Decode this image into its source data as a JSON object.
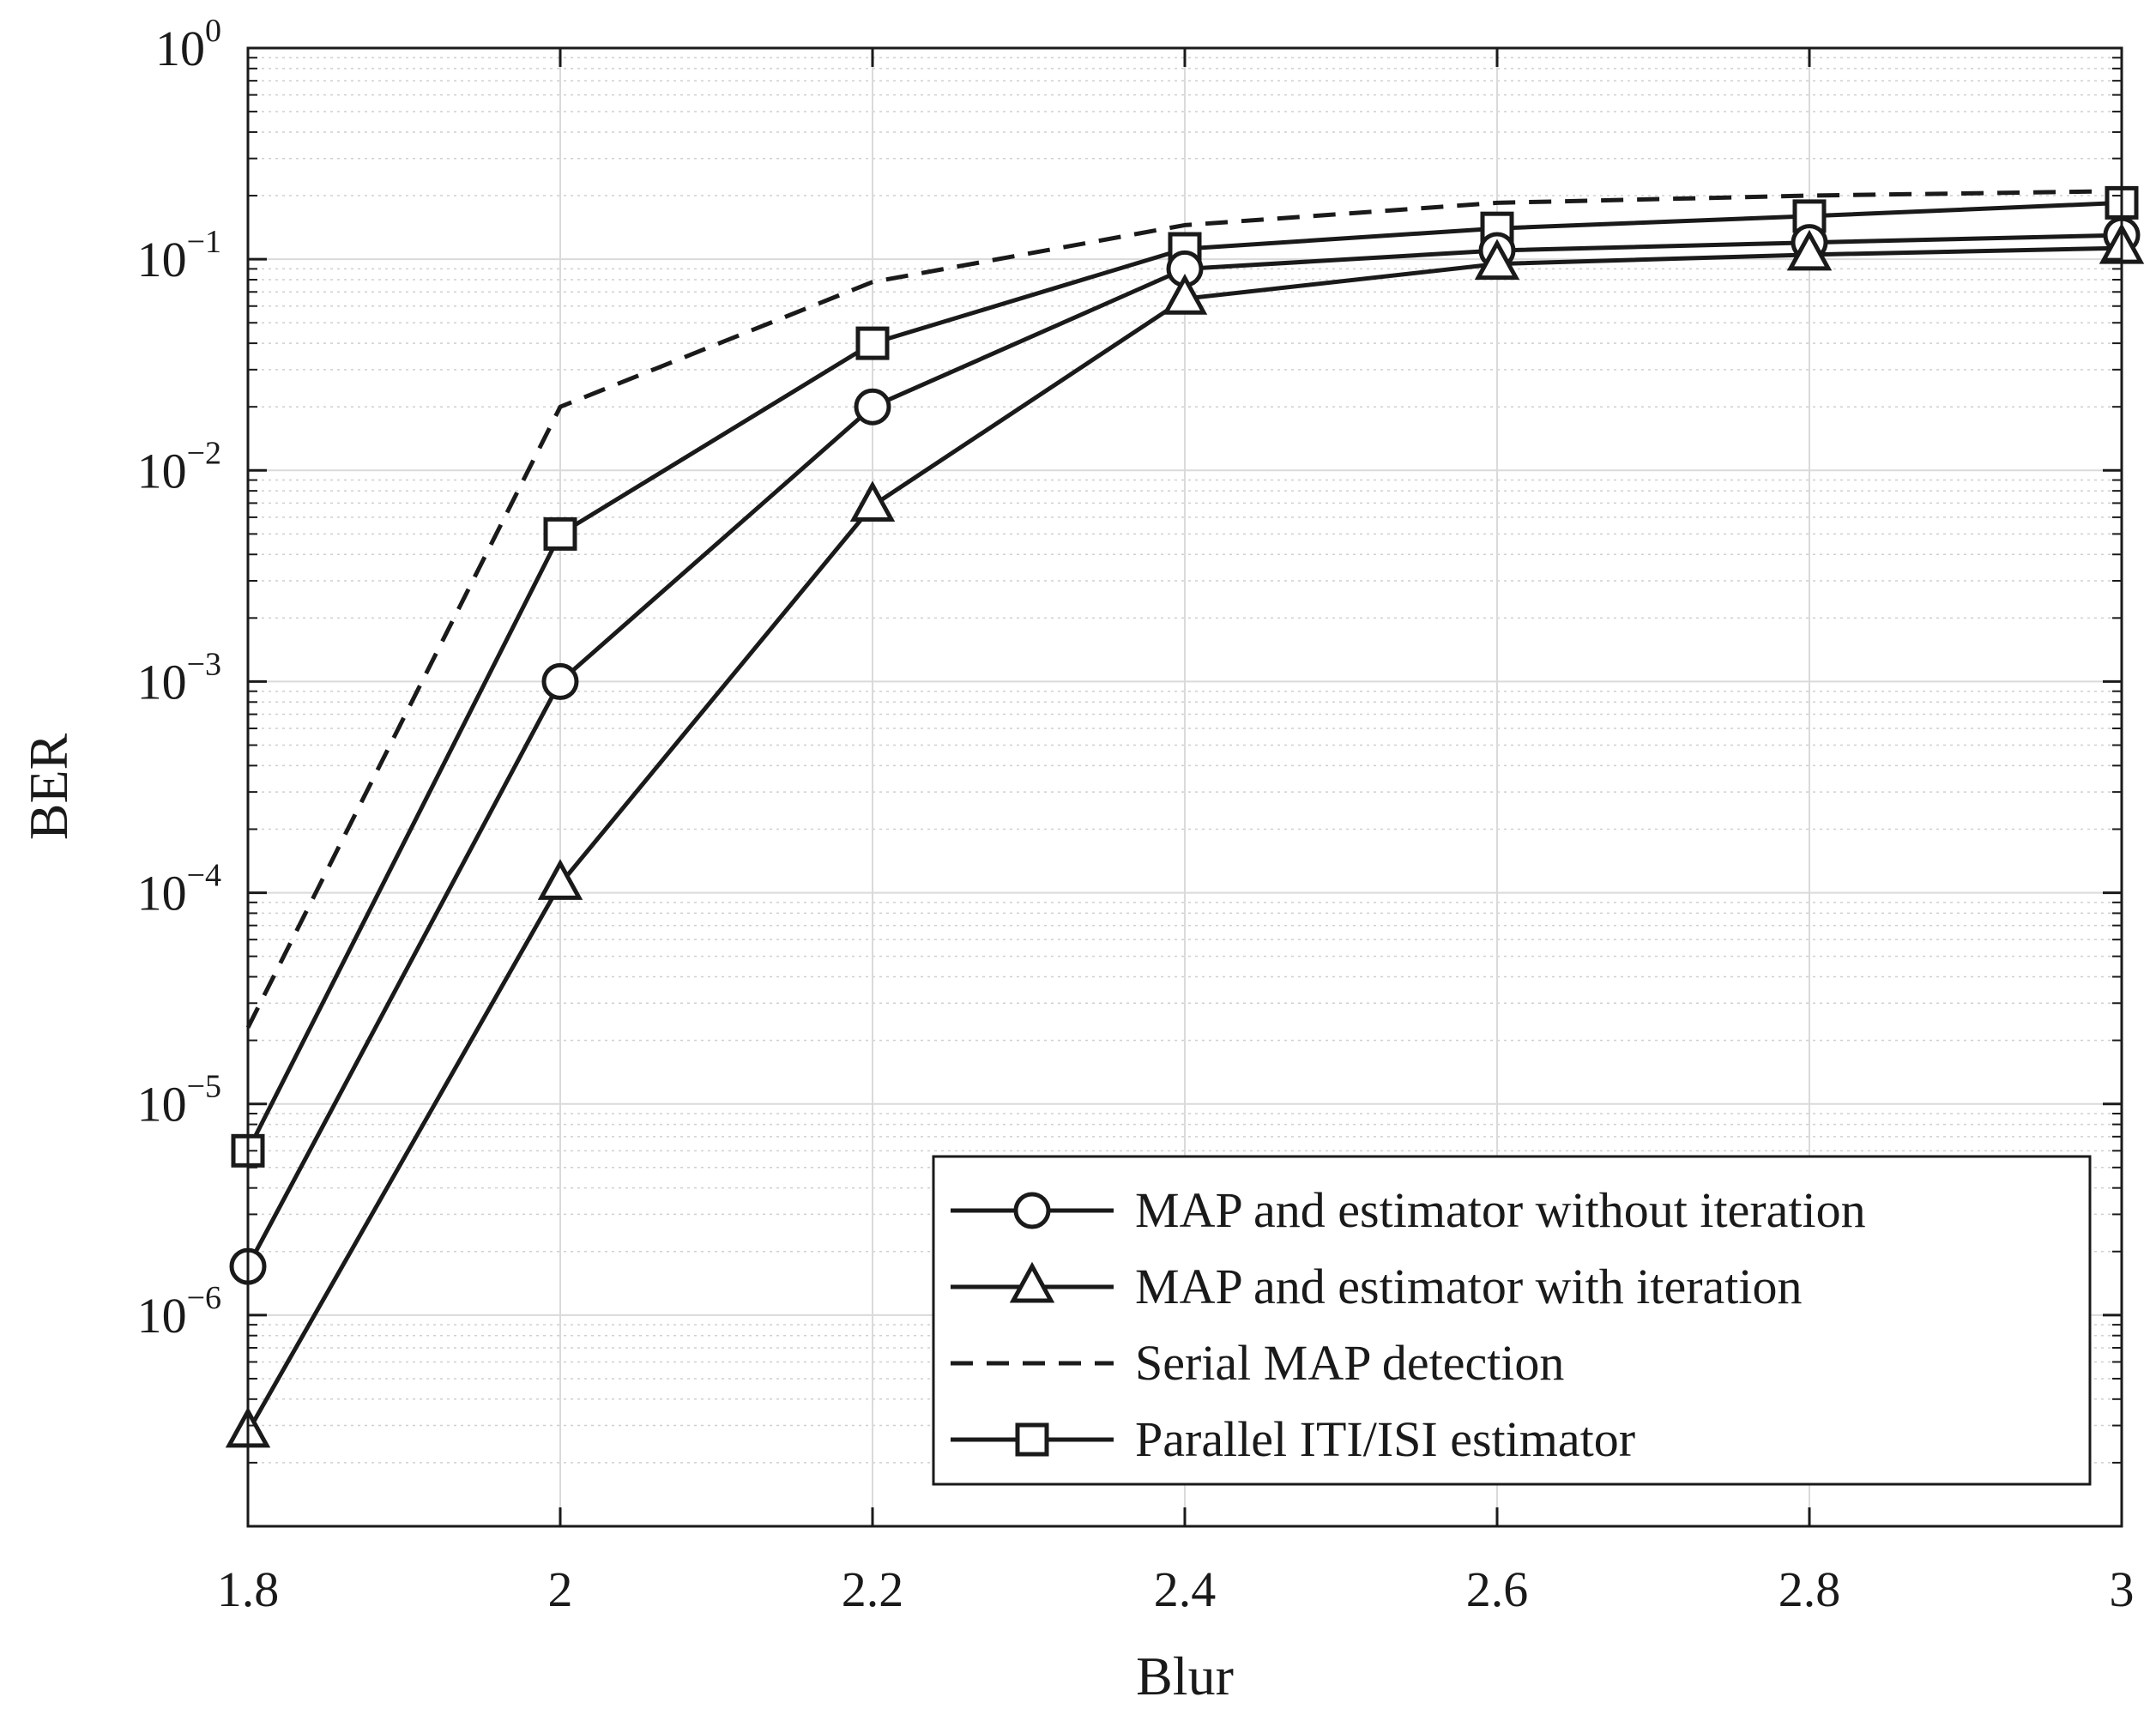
{
  "chart_data": {
    "type": "line",
    "title": "",
    "xlabel": "Blur",
    "ylabel": "BER",
    "xscale": "linear",
    "yscale": "log",
    "xlim": [
      1.8,
      3.0
    ],
    "ylim": [
      1e-07,
      1
    ],
    "x_ticks": [
      "1.8",
      "2",
      "2.2",
      "2.4",
      "2.6",
      "2.8",
      "3"
    ],
    "y_ticks": [
      {
        "base": "10",
        "exp": "0"
      },
      {
        "base": "10",
        "exp": "−1"
      },
      {
        "base": "10",
        "exp": "−2"
      },
      {
        "base": "10",
        "exp": "−3"
      },
      {
        "base": "10",
        "exp": "−4"
      },
      {
        "base": "10",
        "exp": "−5"
      },
      {
        "base": "10",
        "exp": "−6"
      }
    ],
    "grid": true,
    "legend_position": "bottom-right",
    "x": [
      1.8,
      2.0,
      2.2,
      2.4,
      2.6,
      2.8,
      3.0
    ],
    "series": [
      {
        "name": "MAP and estimator without iteration",
        "marker": "circle",
        "line": "solid",
        "values": [
          1.7e-06,
          0.001,
          0.02,
          0.09,
          0.11,
          0.12,
          0.13
        ]
      },
      {
        "name": "MAP and estimator with iteration",
        "marker": "triangle",
        "line": "solid",
        "values": [
          2.8e-07,
          0.00011,
          0.0068,
          0.065,
          0.095,
          0.105,
          0.113
        ]
      },
      {
        "name": "Serial MAP detection",
        "marker": "none",
        "line": "dashed",
        "values": [
          2.3e-05,
          0.02,
          0.078,
          0.145,
          0.185,
          0.2,
          0.21
        ]
      },
      {
        "name": "Parallel ITI/ISI estimator",
        "marker": "square",
        "line": "solid",
        "values": [
          6e-06,
          0.005,
          0.04,
          0.112,
          0.14,
          0.16,
          0.185
        ]
      }
    ]
  }
}
